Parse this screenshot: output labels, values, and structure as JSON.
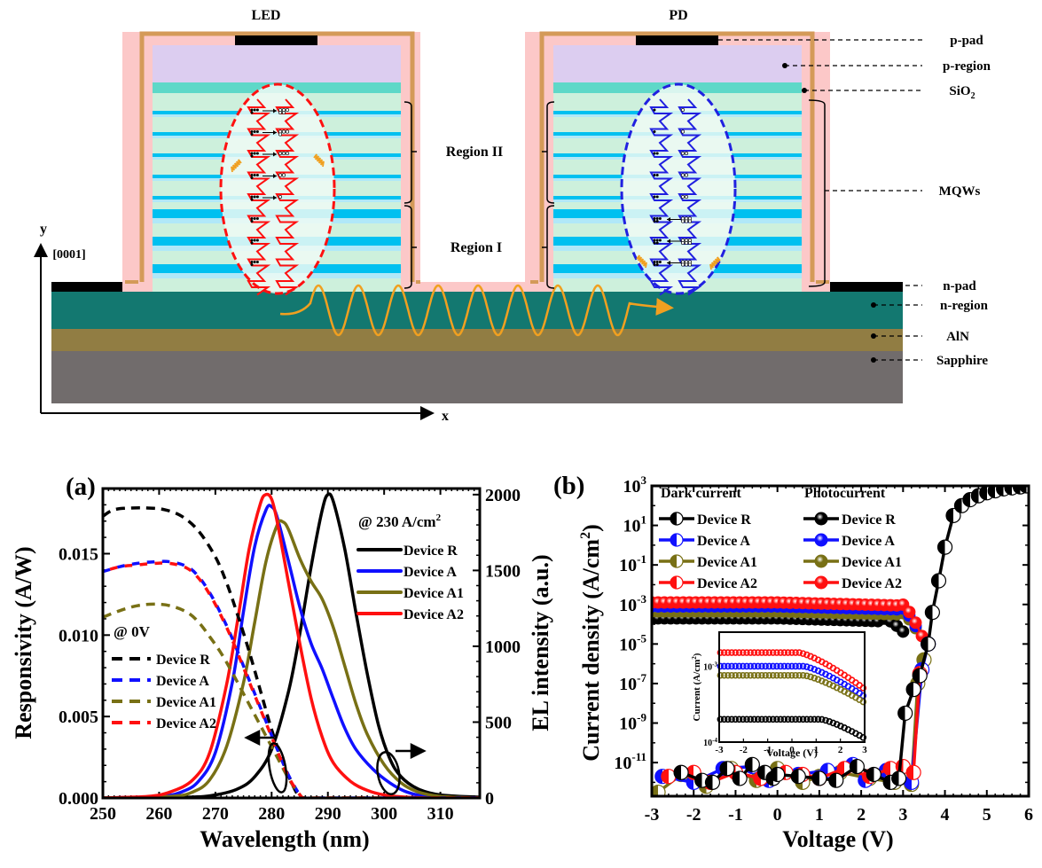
{
  "diagram": {
    "titles": {
      "led": "LED",
      "pd": "PD"
    },
    "region_labels": {
      "region2": "Region II",
      "region1": "Region I"
    },
    "layer_labels": [
      "p-pad",
      "p-region",
      "SiO",
      "MQWs",
      "n-pad",
      "n-region",
      "AlN",
      "Sapphire"
    ],
    "sio2_subscript": "2",
    "axis": {
      "y": "y",
      "y_dir": "[0001]",
      "x": "x"
    },
    "colors": {
      "p_region": "#dccdf0",
      "sio2_cap": "#5ed8c8",
      "barrier": "#cdf0dc",
      "well": "#00c0f0",
      "well_light": "#b0e8f8",
      "passivation": "#fcc8c8",
      "metal_frame": "#d49a58",
      "pad": "#000000",
      "n_region": "#137870",
      "aln": "#917d43",
      "sapphire": "#716c6c",
      "led_band": "#ff1010",
      "pd_band": "#2020e0",
      "photon": "#f0a020"
    }
  },
  "chart_data": [
    {
      "panel": "(a)",
      "type": "line",
      "xlabel": "Wavelength (nm)",
      "ylabel": "Responsivity (A/W)",
      "y2label": "EL intensity (a.u.)",
      "xlim": [
        250,
        317
      ],
      "ylim": [
        0,
        0.019
      ],
      "y2lim": [
        0,
        2040
      ],
      "xticks": [
        250,
        260,
        270,
        280,
        290,
        300,
        310
      ],
      "yticks": [
        "0.000",
        "0.005",
        "0.010",
        "0.015"
      ],
      "yticks_values": [
        0,
        0.005,
        0.01,
        0.015
      ],
      "y2ticks": [
        0,
        500,
        1000,
        1500,
        2000
      ],
      "legend_left": {
        "title": "@ 0V",
        "placement": "center-left",
        "style": "dashed"
      },
      "legend_right": {
        "title": "@ 230 A/cm",
        "title_sup": "2",
        "placement": "top-right",
        "style": "solid"
      },
      "responsivity_series": [
        {
          "name": "Device R",
          "color": "#000000",
          "x": [
            250,
            252,
            255,
            258,
            261,
            264,
            267,
            270,
            272,
            274,
            276,
            278,
            280,
            282,
            284,
            285,
            286
          ],
          "y": [
            0.0173,
            0.0177,
            0.0178,
            0.0178,
            0.0177,
            0.0173,
            0.0164,
            0.0148,
            0.0132,
            0.0112,
            0.009,
            0.0066,
            0.0042,
            0.0022,
            0.0006,
            0.0001,
            0.0
          ]
        },
        {
          "name": "Device A",
          "color": "#1010ff",
          "x": [
            250,
            253,
            256,
            259,
            262,
            265,
            267,
            269,
            271,
            273,
            275,
            277,
            279,
            281,
            283,
            285,
            286,
            290,
            317
          ],
          "y": [
            0.0139,
            0.0142,
            0.0144,
            0.0145,
            0.0145,
            0.0142,
            0.0136,
            0.0126,
            0.0113,
            0.0098,
            0.0081,
            0.0064,
            0.0047,
            0.003,
            0.0014,
            0.0002,
            0.0,
            0.0,
            0.0
          ]
        },
        {
          "name": "Device A1",
          "color": "#787015",
          "x": [
            250,
            253,
            256,
            259,
            262,
            265,
            267,
            269,
            271,
            273,
            275,
            277,
            279,
            281,
            283,
            285,
            286,
            290,
            317
          ],
          "y": [
            0.0111,
            0.0115,
            0.0118,
            0.0119,
            0.0118,
            0.0114,
            0.0108,
            0.0099,
            0.0089,
            0.0077,
            0.0064,
            0.0051,
            0.0038,
            0.0025,
            0.0012,
            0.0002,
            0.0,
            0.0,
            0.0
          ]
        },
        {
          "name": "Device A2",
          "color": "#ff1010",
          "x": [
            250,
            253,
            256,
            259,
            262,
            265,
            267,
            269,
            271,
            273,
            275,
            277,
            279,
            281,
            283,
            285,
            286,
            290,
            317
          ],
          "y": [
            0.0139,
            0.0142,
            0.0143,
            0.0144,
            0.0144,
            0.0141,
            0.0135,
            0.0125,
            0.0112,
            0.0097,
            0.008,
            0.0063,
            0.0046,
            0.0029,
            0.0013,
            0.0002,
            0.0,
            0.0,
            0.0
          ]
        }
      ],
      "el_series": [
        {
          "name": "Device R",
          "color": "#000000",
          "x": [
            250,
            265,
            270,
            274,
            277,
            280,
            283,
            285,
            287,
            289,
            290,
            291,
            293,
            295,
            297,
            299,
            301,
            303,
            306,
            310,
            317
          ],
          "y": [
            0,
            5,
            20,
            60,
            140,
            320,
            700,
            1080,
            1520,
            1900,
            2000,
            1950,
            1640,
            1220,
            820,
            480,
            260,
            140,
            60,
            20,
            5
          ]
        },
        {
          "name": "Device A",
          "color": "#1010ff",
          "x": [
            250,
            260,
            264,
            267,
            270,
            273,
            275,
            277,
            279,
            280,
            281,
            283,
            285,
            287,
            289,
            291,
            293,
            295,
            298,
            301,
            304,
            308,
            317
          ],
          "y": [
            0,
            10,
            40,
            110,
            300,
            760,
            1230,
            1660,
            1900,
            1920,
            1850,
            1560,
            1260,
            1020,
            850,
            650,
            460,
            320,
            190,
            100,
            40,
            10,
            0
          ]
        },
        {
          "name": "Device A1",
          "color": "#787015",
          "x": [
            250,
            262,
            266,
            269,
            272,
            275,
            277,
            279,
            281,
            282,
            283,
            285,
            287,
            289,
            291,
            293,
            295,
            297,
            300,
            303,
            306,
            310,
            317
          ],
          "y": [
            0,
            10,
            40,
            120,
            340,
            760,
            1160,
            1560,
            1800,
            1820,
            1770,
            1580,
            1430,
            1310,
            1120,
            870,
            620,
            420,
            220,
            100,
            40,
            10,
            0
          ]
        },
        {
          "name": "Device A2",
          "color": "#ff1010",
          "x": [
            250,
            258,
            262,
            266,
            269,
            272,
            274,
            276,
            278,
            279,
            280,
            281,
            283,
            285,
            287,
            289,
            291,
            294,
            297,
            300,
            304,
            310,
            317
          ],
          "y": [
            0,
            10,
            40,
            120,
            300,
            750,
            1180,
            1640,
            1940,
            2000,
            1970,
            1820,
            1420,
            1020,
            660,
            400,
            230,
            110,
            50,
            20,
            5,
            0,
            0
          ]
        }
      ],
      "annotations": [
        "arrow-left responsivity axis (ellipse near 283 nm)",
        "arrow-right EL axis (ellipse near 302 nm)"
      ]
    },
    {
      "panel": "(b)",
      "type": "scatter",
      "xlabel": "Voltage (V)",
      "ylabel": "Current density (A/cm",
      "ylabel_sup": "2",
      "ylabel_tail": ")",
      "xlim": [
        -3,
        6
      ],
      "ylim_log10": [
        -12.7,
        3
      ],
      "xticks": [
        -3,
        -2,
        -1,
        0,
        1,
        2,
        3,
        4,
        5,
        6
      ],
      "yticks_exp": [
        3,
        1,
        -1,
        -3,
        -5,
        -7,
        -9,
        -11
      ],
      "legend": {
        "placement": "top-left",
        "col1_title": "Dark current",
        "col2_title": "Photocurrent",
        "entries": [
          "Device R",
          "Device A",
          "Device A1",
          "Device A2"
        ]
      },
      "dark_series": [
        {
          "name": "Device R",
          "color": "#000000",
          "x": [
            -2.3,
            -1.8,
            -1.55,
            -1.2,
            -0.9,
            -0.6,
            -0.3,
            -0.1,
            0.0,
            0.5,
            1.0,
            1.4,
            1.9,
            2.3,
            2.7,
            2.9,
            3.05,
            3.25,
            3.4,
            3.6,
            3.7,
            3.85,
            4.0,
            4.2,
            4.4,
            4.6,
            4.8,
            5.0,
            5.2,
            5.4,
            5.6,
            5.8,
            5.95
          ],
          "log10y": [
            -11.5,
            -11.9,
            -12.0,
            -11.3,
            -11.8,
            -11.1,
            -11.5,
            -11.8,
            -11.6,
            -11.7,
            -11.8,
            -11.9,
            -11.2,
            -11.6,
            -12.0,
            -11.8,
            -8.5,
            -7.3,
            -6.6,
            -5.0,
            -3.4,
            -1.8,
            -0.1,
            1.5,
            2.0,
            2.3,
            2.5,
            2.65,
            2.75,
            2.85,
            2.9,
            2.95,
            3.0
          ]
        },
        {
          "name": "Device A",
          "color": "#1010ff",
          "x": [
            -2.75,
            -2.0,
            -1.3,
            -0.6,
            -0.2,
            0.5,
            1.2,
            1.8,
            2.1,
            2.6,
            3.0,
            3.2,
            3.45,
            3.6
          ],
          "log10y": [
            -11.7,
            -12.0,
            -11.3,
            -11.2,
            -11.9,
            -11.6,
            -11.4,
            -11.1,
            -11.9,
            -11.4,
            -11.6,
            -12.0,
            -6.3,
            -5.0
          ]
        },
        {
          "name": "Device A1",
          "color": "#787015",
          "x": [
            -2.85,
            -2.3,
            -1.7,
            -1.1,
            -0.5,
            0.0,
            0.6,
            1.0,
            1.5,
            2.2,
            2.8,
            3.2,
            3.35,
            3.5
          ],
          "log10y": [
            -12.5,
            -11.6,
            -12.2,
            -11.3,
            -11.9,
            -11.3,
            -12.0,
            -11.7,
            -11.5,
            -11.8,
            -12.0,
            -12.1,
            -7.0,
            -5.8
          ]
        },
        {
          "name": "Device A2",
          "color": "#ff1010",
          "x": [
            -2.6,
            -2.0,
            -1.6,
            -1.0,
            -0.4,
            0.2,
            0.6,
            1.0,
            1.6,
            2.2,
            2.7,
            3.0,
            3.25,
            3.4
          ],
          "log10y": [
            -11.7,
            -11.5,
            -12.0,
            -11.5,
            -11.8,
            -11.5,
            -11.6,
            -11.8,
            -11.3,
            -11.7,
            -11.3,
            -11.2,
            -11.5,
            -6.5
          ]
        }
      ],
      "photo_series": [
        {
          "name": "Device R",
          "color": "#000000",
          "flat_log10y": -3.7,
          "knee_x": 2.5,
          "points_x_start": -3,
          "points_x_end": 3.1,
          "step": 0.15,
          "drop_to": -4.6
        },
        {
          "name": "Device A",
          "color": "#1010ff",
          "flat_log10y": -3.1,
          "knee_x": 2.9,
          "points_x_start": -3,
          "points_x_end": 3.35,
          "step": 0.15,
          "drop_to": -4.3
        },
        {
          "name": "Device A1",
          "color": "#787015",
          "flat_log10y": -3.35,
          "knee_x": 2.9,
          "points_x_start": -3,
          "points_x_end": 3.3,
          "step": 0.15,
          "drop_to": -4.2
        },
        {
          "name": "Device A2",
          "color": "#ff1010",
          "flat_log10y": -2.9,
          "knee_x": 2.9,
          "points_x_start": -3,
          "points_x_end": 3.45,
          "step": 0.15,
          "drop_to": -4.6
        }
      ],
      "inset": {
        "xlabel": "Voltage (V)",
        "ylabel": "Current (A/cm",
        "ylabel_sup": "2",
        "ylabel_tail": ")",
        "xticks": [
          -3,
          -2,
          -1,
          0,
          1,
          2,
          3
        ],
        "yticks_exp": [
          -3,
          -4
        ],
        "ylim_log10": [
          -4.0,
          -2.55
        ],
        "series": [
          {
            "name": "Device A2",
            "color": "#ff1010",
            "flat": -2.82,
            "end": -3.3,
            "knee": 0.3
          },
          {
            "name": "Device A",
            "color": "#1010ff",
            "flat": -3.0,
            "end": -3.4,
            "knee": 0.5
          },
          {
            "name": "Device A1",
            "color": "#787015",
            "flat": -3.12,
            "end": -3.48,
            "knee": 0.5
          },
          {
            "name": "Device R",
            "color": "#000000",
            "flat": -3.7,
            "end": -3.95,
            "knee": 1.2
          }
        ]
      }
    }
  ]
}
